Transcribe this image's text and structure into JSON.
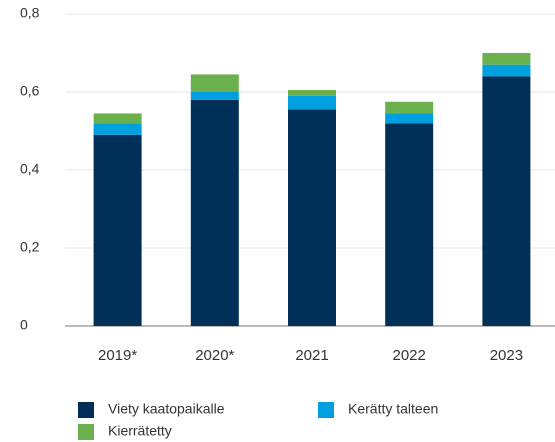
{
  "chart_data": {
    "type": "stacked_bar",
    "categories": [
      "2019*",
      "2020*",
      "2021",
      "2022",
      "2023"
    ],
    "series": [
      {
        "name": "Viety kaatopaikalle",
        "color": "#003057",
        "values": [
          0.49,
          0.58,
          0.555,
          0.52,
          0.64
        ]
      },
      {
        "name": "Kerätty talteen",
        "color": "#009fdf",
        "values": [
          0.03,
          0.02,
          0.035,
          0.025,
          0.03
        ]
      },
      {
        "name": "Kierrätetty",
        "color": "#6ab04c",
        "values": [
          0.025,
          0.045,
          0.015,
          0.03,
          0.03
        ]
      }
    ],
    "ylim": [
      0,
      0.8
    ],
    "yticks": [
      0,
      {
        "value": 0.2,
        "label": "0,2"
      },
      {
        "value": 0.4,
        "label": "0,4"
      },
      {
        "value": 0.6,
        "label": "0,6"
      },
      {
        "value": 0.8,
        "label": "0,8"
      }
    ],
    "grid": true
  }
}
